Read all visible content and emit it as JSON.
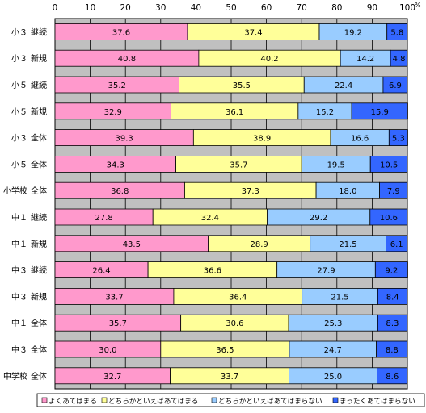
{
  "chart_data": {
    "type": "bar",
    "orientation": "horizontal",
    "stacked": true,
    "unit_label": "%",
    "xlim": [
      0,
      100
    ],
    "x_ticks": [
      "0",
      "10",
      "20",
      "30",
      "40",
      "50",
      "60",
      "70",
      "80",
      "90",
      "100"
    ],
    "grid": true,
    "legend_position": "bottom",
    "categories": [
      "小３ 継続",
      "小３ 新規",
      "小５ 継続",
      "小５ 新規",
      "小３ 全体",
      "小５ 全体",
      "小学校 全体",
      "中１ 継続",
      "中１ 新規",
      "中３ 継続",
      "中３ 新規",
      "中１ 全体",
      "中３ 全体",
      "中学校 全体"
    ],
    "series": [
      {
        "name": "よくあてはまる",
        "color": "#ff99cc",
        "values": [
          37.6,
          40.8,
          35.2,
          32.9,
          39.3,
          34.3,
          36.8,
          27.8,
          43.5,
          26.4,
          33.7,
          35.7,
          30.0,
          32.7
        ],
        "labels": [
          "37.6",
          "40.8",
          "35.2",
          "32.9",
          "39.3",
          "34.3",
          "36.8",
          "27.8",
          "43.5",
          "26.4",
          "33.7",
          "35.7",
          "30.0",
          "32.7"
        ]
      },
      {
        "name": "どちらかといえばあてはまる",
        "color": "#ffff99",
        "values": [
          37.4,
          40.2,
          35.5,
          36.1,
          38.9,
          35.7,
          37.3,
          32.4,
          28.9,
          36.6,
          36.4,
          30.6,
          36.5,
          33.7
        ],
        "labels": [
          "37.4",
          "40.2",
          "35.5",
          "36.1",
          "38.9",
          "35.7",
          "37.3",
          "32.4",
          "28.9",
          "36.6",
          "36.4",
          "30.6",
          "36.5",
          "33.7"
        ]
      },
      {
        "name": "どちらかといえばあてはまらない",
        "color": "#99ccff",
        "values": [
          19.2,
          14.2,
          22.4,
          15.2,
          16.6,
          19.5,
          18.0,
          29.2,
          21.5,
          27.9,
          21.5,
          25.3,
          24.7,
          25.0
        ],
        "labels": [
          "19.2",
          "14.2",
          "22.4",
          "15.2",
          "16.6",
          "19.5",
          "18.0",
          "29.2",
          "21.5",
          "27.9",
          "21.5",
          "25.3",
          "24.7",
          "25.0"
        ]
      },
      {
        "name": "まったくあてはまらない",
        "color": "#3366ff",
        "values": [
          5.8,
          4.8,
          6.9,
          15.9,
          5.3,
          10.5,
          7.9,
          10.6,
          6.1,
          9.2,
          8.4,
          8.3,
          8.8,
          8.6
        ],
        "labels": [
          "5.8",
          "4.8",
          "6.9",
          "15.9",
          "5.3",
          "10.5",
          "7.9",
          "10.6",
          "6.1",
          "9.2",
          "8.4",
          "8.3",
          "8.8",
          "8.6"
        ]
      }
    ]
  },
  "colors": {
    "plot_background": "#c0c0c0",
    "gridline": "#000000",
    "bar_border": "#000000"
  }
}
